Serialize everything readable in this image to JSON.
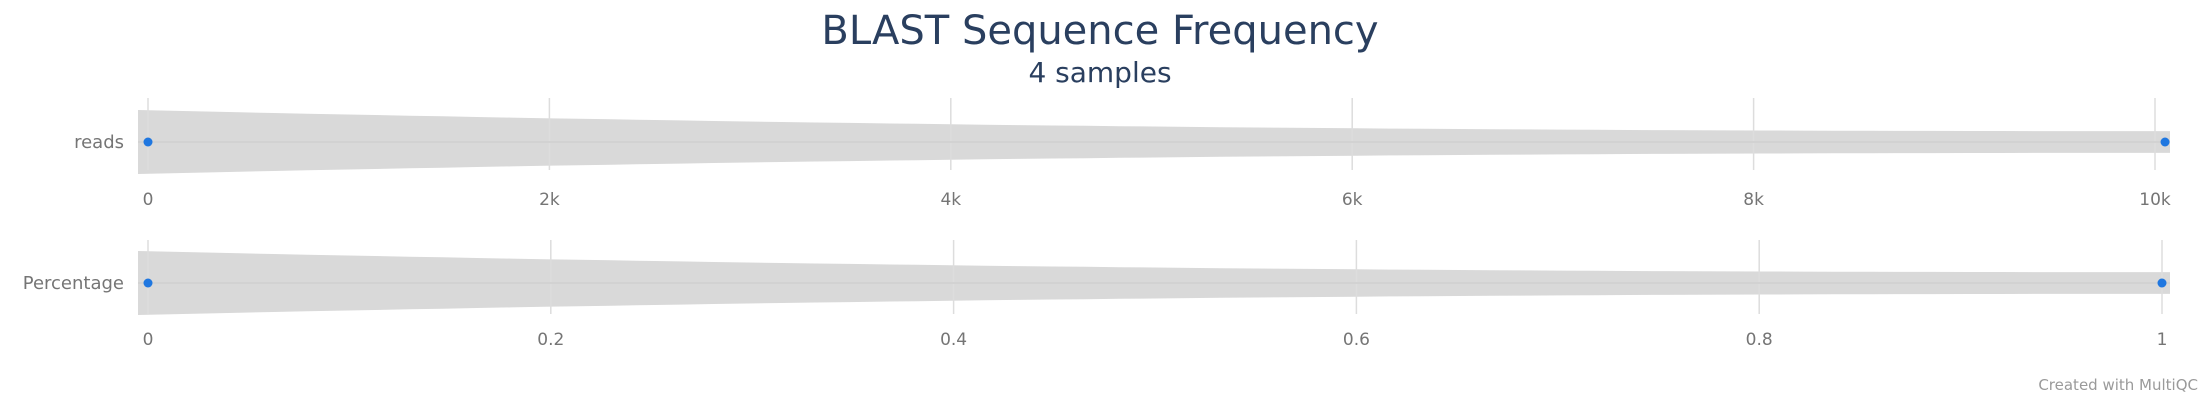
{
  "title": "BLAST Sequence Frequency",
  "subtitle": "4 samples",
  "credit": "Created with MultiQC",
  "colors": {
    "point": "#1f77e0",
    "violin": "#d9d9d9",
    "grid": "#dddddd",
    "tick": "#757575"
  },
  "chart_data": [
    {
      "type": "violin",
      "metric": "reads",
      "xlim": [
        0,
        10050
      ],
      "ticks": [
        0,
        2000,
        4000,
        6000,
        8000,
        10000
      ],
      "tick_labels": [
        "0",
        "2k",
        "4k",
        "6k",
        "8k",
        "10k"
      ],
      "points": [
        0,
        10050
      ]
    },
    {
      "type": "violin",
      "metric": "Percentage",
      "xlim": [
        0,
        1
      ],
      "ticks": [
        0,
        0.2,
        0.4,
        0.6,
        0.8,
        1
      ],
      "tick_labels": [
        "0",
        "0.2",
        "0.4",
        "0.6",
        "0.8",
        "1"
      ],
      "points": [
        0,
        1
      ]
    }
  ]
}
